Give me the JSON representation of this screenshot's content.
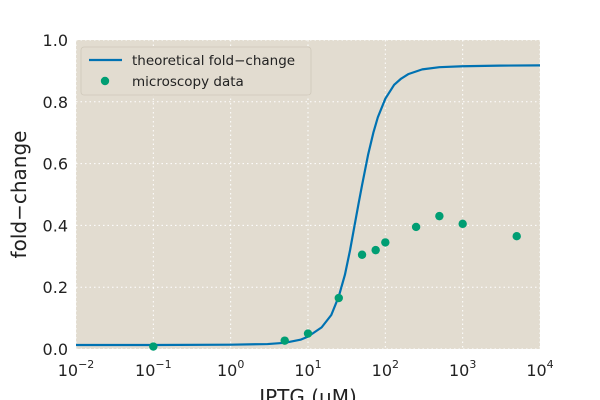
{
  "chart_data": {
    "type": "line",
    "xscale": "log",
    "xlabel": "IPTG (μM)",
    "ylabel": "fold−change",
    "xlim": [
      0.01,
      10000
    ],
    "ylim": [
      0.0,
      1.0
    ],
    "grid": true,
    "legend_position": "top-left",
    "x_ticks": [
      {
        "base": "10",
        "exp": "−2"
      },
      {
        "base": "10",
        "exp": "−1"
      },
      {
        "base": "10",
        "exp": "0"
      },
      {
        "base": "10",
        "exp": "1"
      },
      {
        "base": "10",
        "exp": "2"
      },
      {
        "base": "10",
        "exp": "3"
      },
      {
        "base": "10",
        "exp": "4"
      }
    ],
    "y_ticks": [
      "0.0",
      "0.2",
      "0.4",
      "0.6",
      "0.8",
      "1.0"
    ],
    "series": [
      {
        "name": "theoretical fold−change",
        "kind": "line",
        "color": "#0072B2",
        "x": [
          0.01,
          0.1,
          1,
          3,
          5,
          8,
          10,
          15,
          20,
          25,
          30,
          35,
          40,
          45,
          50,
          60,
          70,
          80,
          100,
          130,
          160,
          200,
          300,
          500,
          1000,
          3000,
          10000
        ],
        "y": [
          0.013,
          0.013,
          0.014,
          0.016,
          0.02,
          0.03,
          0.04,
          0.07,
          0.11,
          0.17,
          0.24,
          0.32,
          0.4,
          0.47,
          0.53,
          0.63,
          0.7,
          0.75,
          0.81,
          0.855,
          0.875,
          0.89,
          0.905,
          0.912,
          0.915,
          0.917,
          0.918
        ]
      },
      {
        "name": "microscopy data",
        "kind": "scatter",
        "color": "#009E73",
        "x": [
          0.1,
          5,
          10,
          25,
          50,
          75,
          100,
          250,
          500,
          1000,
          5000
        ],
        "y": [
          0.008,
          0.027,
          0.05,
          0.165,
          0.305,
          0.32,
          0.345,
          0.395,
          0.43,
          0.405,
          0.365
        ]
      }
    ]
  },
  "colors": {
    "plot_background": "#E2DCD0",
    "grid": "#FFFFFF"
  }
}
